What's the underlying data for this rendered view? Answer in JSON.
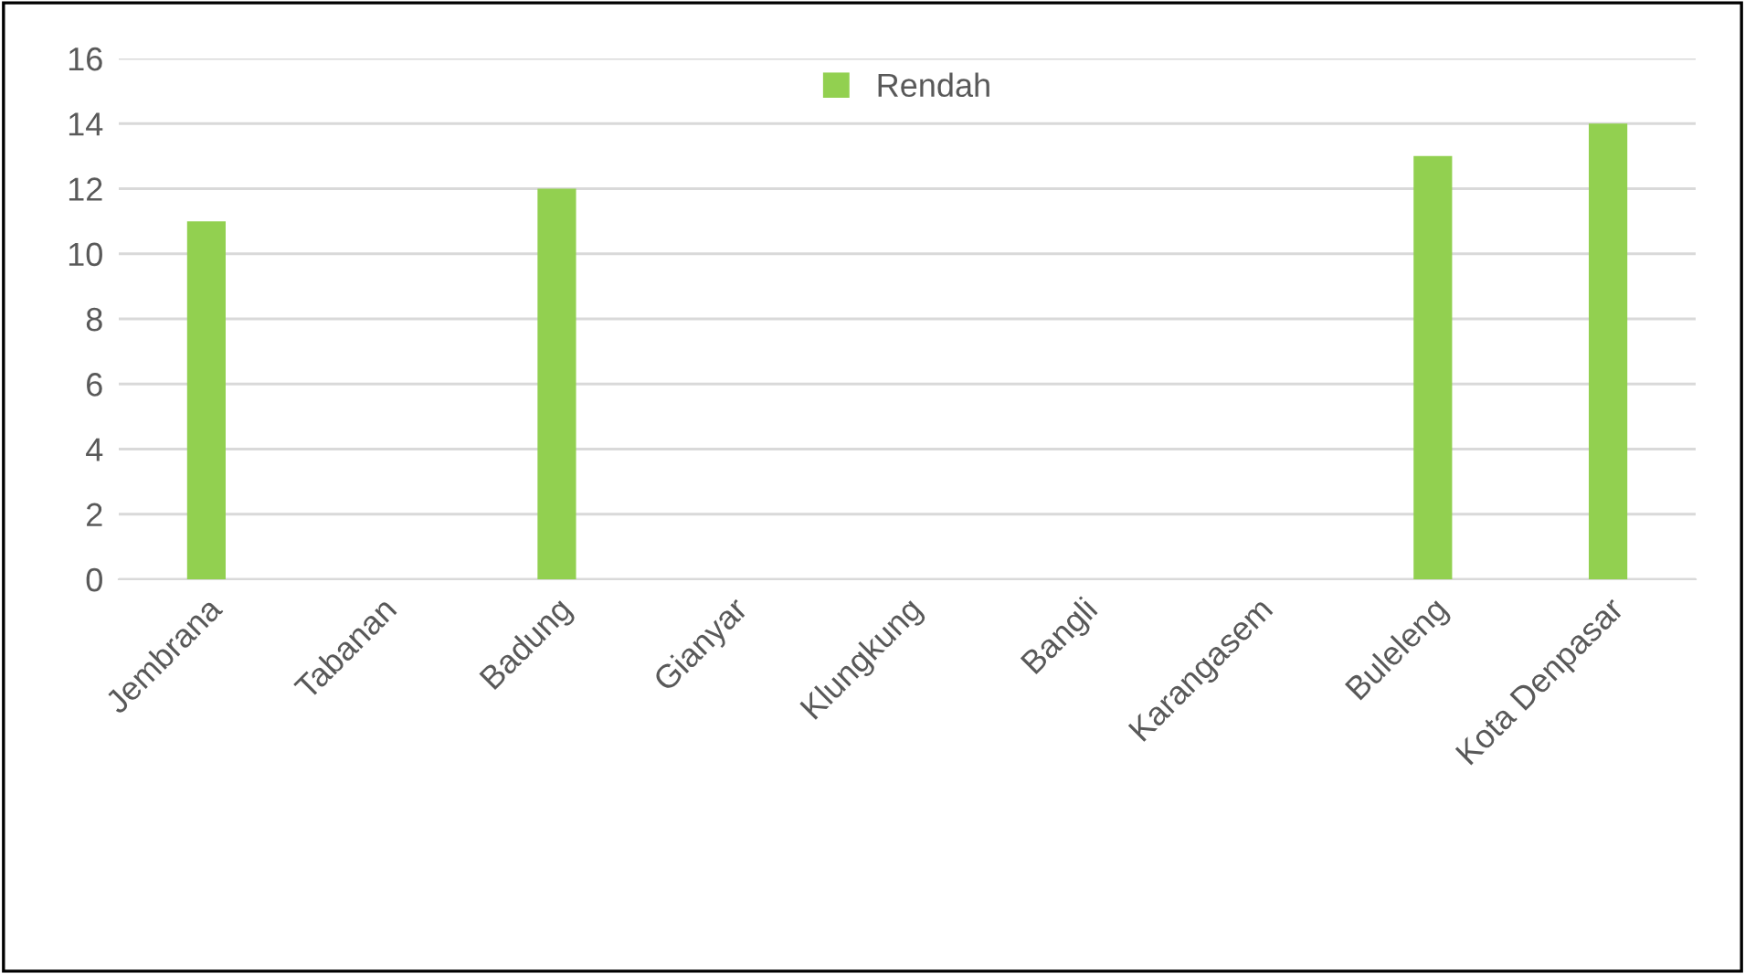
{
  "chart_data": {
    "type": "bar",
    "categories": [
      "Jembrana",
      "Tabanan",
      "Badung",
      "Gianyar",
      "Klungkung",
      "Bangli",
      "Karangasem",
      "Buleleng",
      "Kota Denpasar"
    ],
    "series": [
      {
        "name": "Rendah",
        "color": "#92d050",
        "values": [
          11,
          0,
          12,
          0,
          0,
          0,
          0,
          13,
          14
        ]
      }
    ],
    "ylim": [
      0,
      16
    ],
    "yticks": [
      0,
      2,
      4,
      6,
      8,
      10,
      12,
      14,
      16
    ],
    "grid": "y",
    "legend": "top"
  }
}
